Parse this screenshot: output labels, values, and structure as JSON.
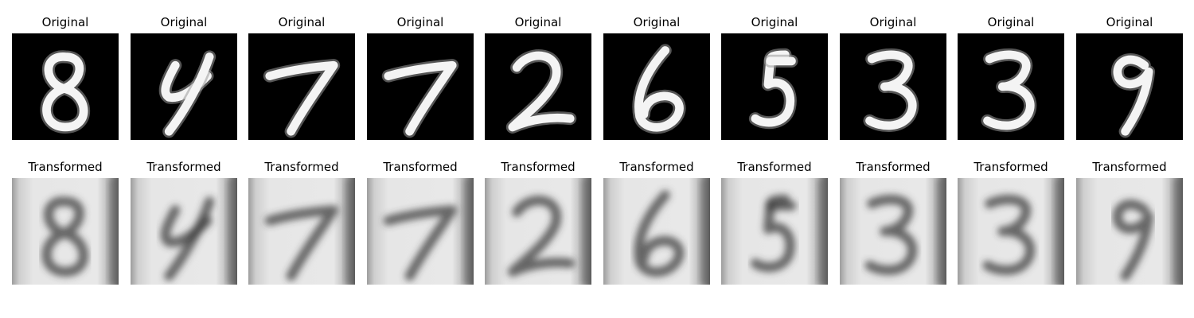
{
  "figure": {
    "background": "#ffffff",
    "original_label": "Original",
    "transformed_label": "Transformed",
    "digits": [
      "8",
      "4",
      "7",
      "7",
      "2",
      "6",
      "5",
      "3",
      "3",
      "9"
    ]
  },
  "rows": [
    {
      "row_name": "original",
      "panels": [
        {
          "title": "Original",
          "digit": "8"
        },
        {
          "title": "Original",
          "digit": "4"
        },
        {
          "title": "Original",
          "digit": "7"
        },
        {
          "title": "Original",
          "digit": "7"
        },
        {
          "title": "Original",
          "digit": "2"
        },
        {
          "title": "Original",
          "digit": "6"
        },
        {
          "title": "Original",
          "digit": "5"
        },
        {
          "title": "Original",
          "digit": "3"
        },
        {
          "title": "Original",
          "digit": "3"
        },
        {
          "title": "Original",
          "digit": "9"
        }
      ]
    },
    {
      "row_name": "transformed",
      "panels": [
        {
          "title": "Transformed",
          "digit": "8"
        },
        {
          "title": "Transformed",
          "digit": "4"
        },
        {
          "title": "Transformed",
          "digit": "7"
        },
        {
          "title": "Transformed",
          "digit": "7"
        },
        {
          "title": "Transformed",
          "digit": "2"
        },
        {
          "title": "Transformed",
          "digit": "6"
        },
        {
          "title": "Transformed",
          "digit": "5"
        },
        {
          "title": "Transformed",
          "digit": "3"
        },
        {
          "title": "Transformed",
          "digit": "3"
        },
        {
          "title": "Transformed",
          "digit": "9"
        }
      ]
    }
  ]
}
